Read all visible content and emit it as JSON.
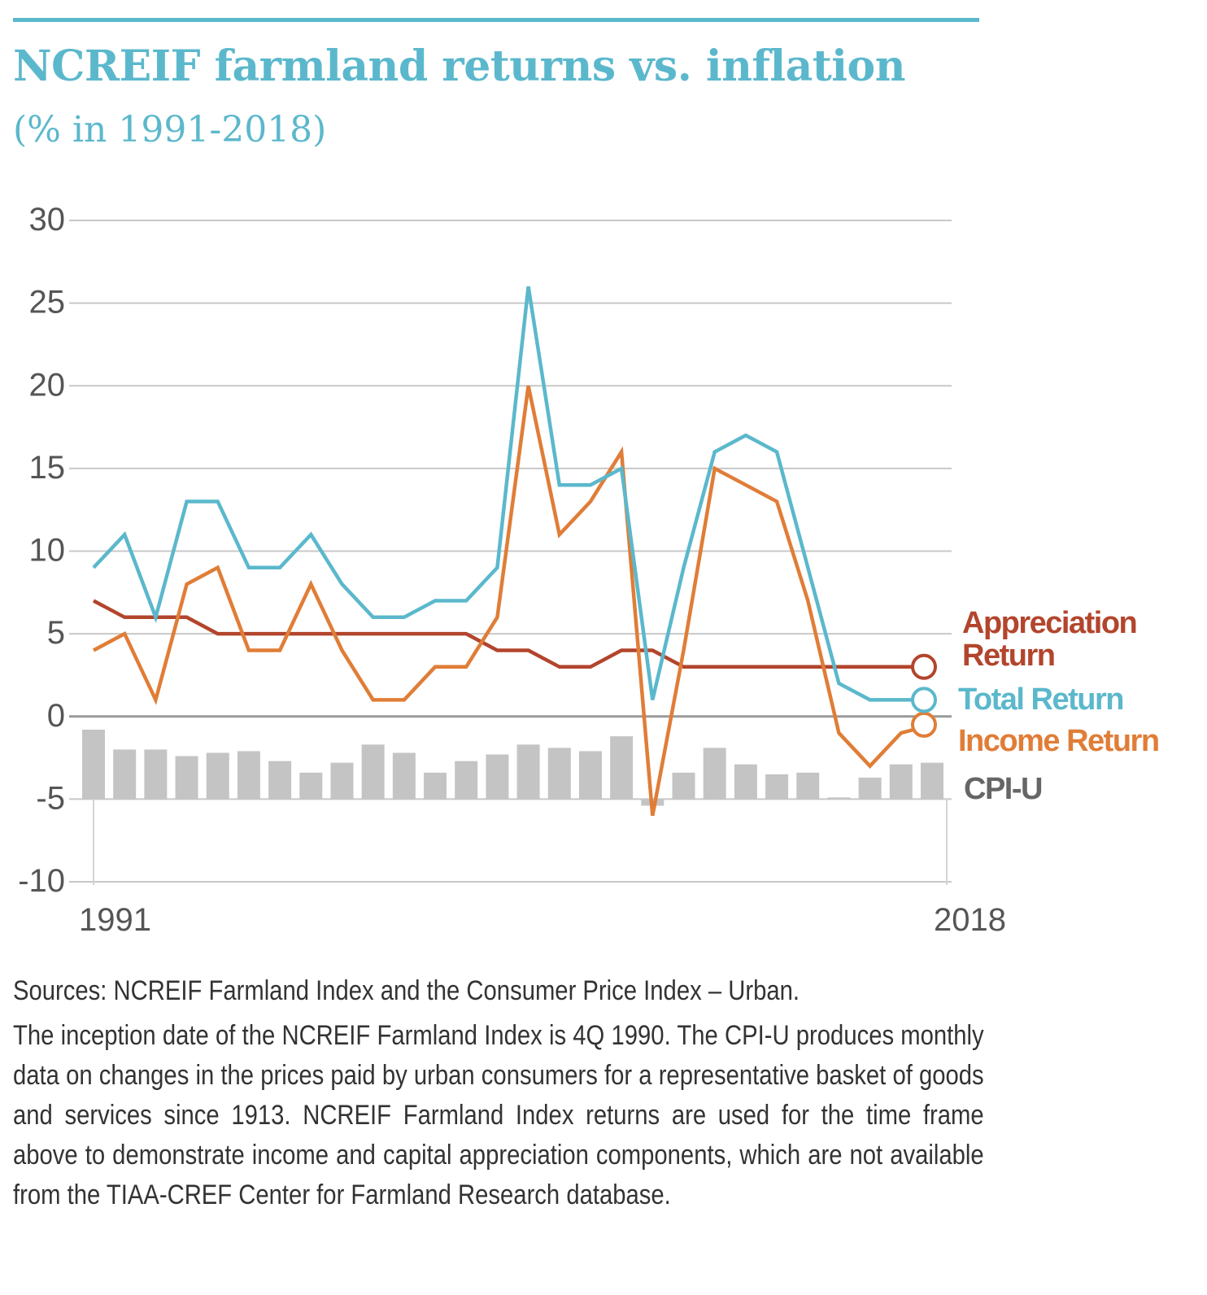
{
  "header": {
    "title": "NCREIF farmland returns vs. inflation",
    "subtitle": "(% in 1991-2018)"
  },
  "colors": {
    "total": "#5bb8cc",
    "income": "#e07d37",
    "appreciation": "#b2452c",
    "cpi": "#c4c4c4",
    "title": "#5bb8cc"
  },
  "chart_data": {
    "type": "line",
    "title": "NCREIF farmland returns vs. inflation",
    "subtitle": "(% in 1991-2018)",
    "xlabel": "",
    "ylabel": "",
    "ylim": [
      -10,
      30
    ],
    "yticks": [
      30,
      25,
      20,
      15,
      10,
      5,
      0,
      -5,
      -10
    ],
    "ytick_labels": [
      "30",
      "25",
      "20",
      "15",
      "10",
      "5",
      "0",
      "-5",
      "-10"
    ],
    "xlim": [
      1991,
      2018
    ],
    "xtick_labels": [
      "1991",
      "2018"
    ],
    "x": [
      1991,
      1992,
      1993,
      1994,
      1995,
      1996,
      1997,
      1998,
      1999,
      2000,
      2001,
      2002,
      2003,
      2004,
      2005,
      2006,
      2007,
      2008,
      2009,
      2010,
      2011,
      2012,
      2013,
      2014,
      2015,
      2016,
      2017,
      2018
    ],
    "grid": true,
    "legend_position": "right",
    "series": [
      {
        "name": "Appreciation Return",
        "key": "appreciation",
        "kind": "line",
        "values": [
          7,
          6,
          6,
          6,
          5,
          5,
          5,
          5,
          5,
          5,
          5,
          5,
          5,
          4,
          4,
          3,
          3,
          4,
          4,
          3,
          3,
          3,
          3,
          3,
          3,
          3,
          3,
          3
        ]
      },
      {
        "name": "Total Return",
        "key": "total",
        "kind": "line",
        "values": [
          9,
          11,
          6,
          13,
          13,
          9,
          9,
          11,
          8,
          6,
          6,
          7,
          7,
          9,
          26,
          14,
          14,
          15,
          1,
          9,
          16,
          17,
          16,
          9,
          2,
          1,
          1,
          1
        ]
      },
      {
        "name": "Income Return",
        "key": "income",
        "kind": "line",
        "values": [
          4,
          5,
          1,
          8,
          9,
          4,
          4,
          8,
          4,
          1,
          1,
          3,
          3,
          6,
          20,
          11,
          13,
          16,
          -6,
          4,
          15,
          14,
          13,
          7,
          -1,
          -3,
          -1,
          -0.5
        ]
      },
      {
        "name": "CPI-U",
        "key": "cpi",
        "kind": "bar",
        "values": [
          4.2,
          3.0,
          3.0,
          2.6,
          2.8,
          2.9,
          2.3,
          1.6,
          2.2,
          3.3,
          2.8,
          1.6,
          2.3,
          2.7,
          3.3,
          3.1,
          2.9,
          3.8,
          -0.4,
          1.6,
          3.1,
          2.1,
          1.5,
          1.6,
          0.1,
          1.3,
          2.1,
          2.2
        ]
      }
    ]
  },
  "notes": {
    "sources": "Sources: NCREIF Farmland Index and the Consumer Price Index – Urban.",
    "body": "The inception date of the NCREIF Farmland Index is 4Q 1990. The CPI-U produces monthly data on changes in the prices paid by urban consumers for a representative basket of goods and services since 1913. NCREIF Farmland Index returns are used for the time frame above to demonstrate income and capital appreciation components, which are not available from the TIAA-CREF Center for Farmland Research database."
  }
}
